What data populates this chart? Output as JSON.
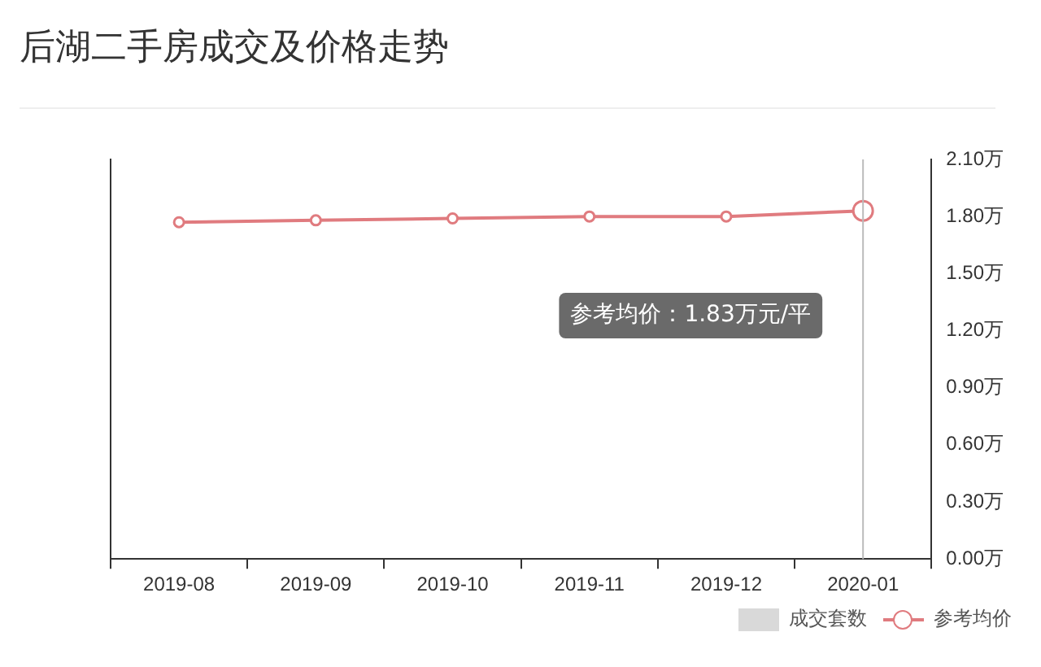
{
  "chart_data": {
    "type": "line",
    "title": "后湖二手房成交及价格走势",
    "categories": [
      "2019-08",
      "2019-09",
      "2019-10",
      "2019-11",
      "2019-12",
      "2020-01"
    ],
    "series": [
      {
        "name": "成交套数",
        "type": "bar",
        "color": "#d9d9d9",
        "values": [
          null,
          null,
          null,
          null,
          null,
          null
        ]
      },
      {
        "name": "参考均价",
        "color": "#e07b7f",
        "values": [
          1.77,
          1.78,
          1.79,
          1.8,
          1.8,
          1.83
        ]
      }
    ],
    "ylim": [
      0,
      2.1
    ],
    "yticks": [
      {
        "value": 0,
        "label": "0.00万"
      },
      {
        "value": 0.3,
        "label": "0.30万"
      },
      {
        "value": 0.6,
        "label": "0.60万"
      },
      {
        "value": 0.9,
        "label": "0.90万"
      },
      {
        "value": 1.2,
        "label": "1.20万"
      },
      {
        "value": 1.5,
        "label": "1.50万"
      },
      {
        "value": 1.8,
        "label": "1.80万"
      },
      {
        "value": 2.1,
        "label": "2.10万"
      }
    ],
    "annotations": [
      "参考均价：1.83万元/平"
    ],
    "ref_lines": [
      {
        "axis": "x",
        "value": "2020-01",
        "color": "#bbbbbb"
      }
    ],
    "legend": "bottom right",
    "marker": "circle",
    "grid": false
  }
}
